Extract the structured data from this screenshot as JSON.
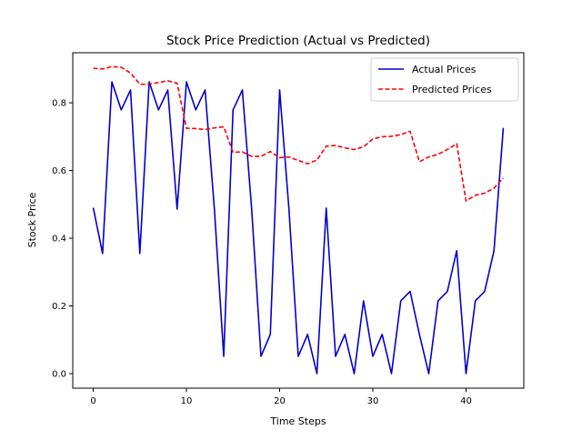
{
  "chart_data": {
    "type": "line",
    "title": "Stock Price Prediction (Actual vs Predicted)",
    "xlabel": "Time Steps",
    "ylabel": "Stock Price",
    "xlim": [
      -2.2,
      46.2
    ],
    "ylim": [
      -0.043,
      0.948
    ],
    "xticks": [
      0,
      10,
      20,
      30,
      40
    ],
    "yticks": [
      0.0,
      0.2,
      0.4,
      0.6,
      0.8
    ],
    "xtick_labels": [
      "0",
      "10",
      "20",
      "30",
      "40"
    ],
    "ytick_labels": [
      "0.0",
      "0.2",
      "0.4",
      "0.6",
      "0.8"
    ],
    "grid": false,
    "legend_position": "top-right",
    "x": [
      0,
      1,
      2,
      3,
      4,
      5,
      6,
      7,
      8,
      9,
      10,
      11,
      12,
      13,
      14,
      15,
      16,
      17,
      18,
      19,
      20,
      21,
      22,
      23,
      24,
      25,
      26,
      27,
      28,
      29,
      30,
      31,
      32,
      33,
      34,
      35,
      36,
      37,
      38,
      39,
      40,
      41,
      42,
      43,
      44
    ],
    "series": [
      {
        "name": "Actual Prices",
        "color": "#0000cc",
        "style": "solid",
        "values": [
          0.49,
          0.355,
          0.862,
          0.779,
          0.838,
          0.355,
          0.862,
          0.779,
          0.838,
          0.486,
          0.862,
          0.779,
          0.838,
          0.486,
          0.051,
          0.779,
          0.838,
          0.486,
          0.051,
          0.116,
          0.838,
          0.486,
          0.051,
          0.116,
          0.0,
          0.489,
          0.051,
          0.116,
          0.0,
          0.215,
          0.051,
          0.116,
          0.0,
          0.215,
          0.243,
          0.116,
          0.0,
          0.215,
          0.243,
          0.363,
          0.0,
          0.215,
          0.243,
          0.363,
          0.726
        ]
      },
      {
        "name": "Predicted Prices",
        "color": "#ff0000",
        "style": "dashed",
        "values": [
          0.902,
          0.9,
          0.907,
          0.905,
          0.888,
          0.855,
          0.855,
          0.86,
          0.865,
          0.858,
          0.725,
          0.724,
          0.721,
          0.726,
          0.729,
          0.654,
          0.655,
          0.642,
          0.642,
          0.656,
          0.638,
          0.64,
          0.63,
          0.62,
          0.631,
          0.672,
          0.674,
          0.667,
          0.662,
          0.67,
          0.693,
          0.7,
          0.701,
          0.706,
          0.716,
          0.626,
          0.64,
          0.648,
          0.662,
          0.679,
          0.51,
          0.527,
          0.533,
          0.548,
          0.578
        ]
      }
    ]
  }
}
